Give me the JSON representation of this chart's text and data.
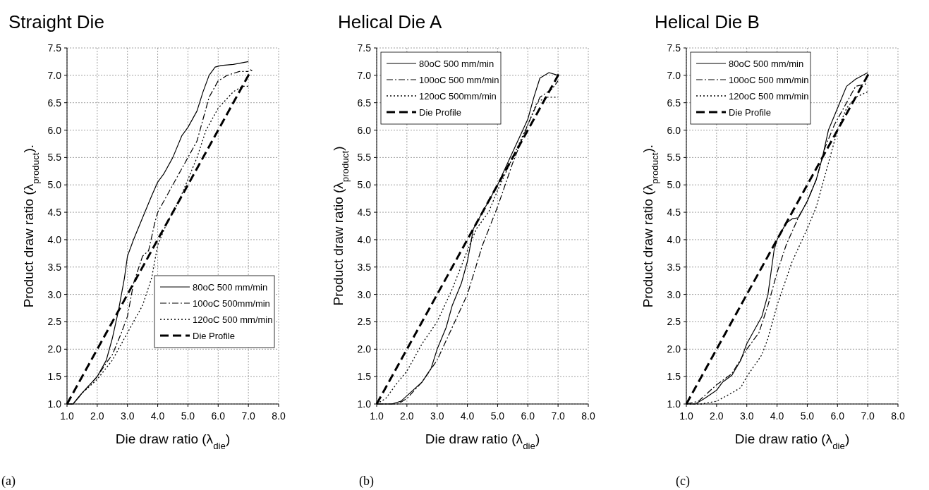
{
  "chart_data": [
    {
      "type": "line",
      "title": "Straight Die",
      "xlabel": "Die draw ratio (λ$_{die}$)",
      "ylabel": "Product draw ratio (λ$_{product}$).",
      "annotations": [
        "(a)"
      ],
      "xlim": [
        1,
        8
      ],
      "ylim": [
        1,
        7.5
      ],
      "xticks": [
        {
          "value": 1,
          "label": "1.0"
        },
        {
          "value": 2,
          "label": "2.0"
        },
        {
          "value": 3,
          "label": "3.0"
        },
        {
          "value": 4,
          "label": "4.0"
        },
        {
          "value": 5,
          "label": "5.0"
        },
        {
          "value": 6,
          "label": "6.0"
        },
        {
          "value": 7,
          "label": "7.0"
        },
        {
          "value": 8,
          "label": "8.0"
        }
      ],
      "yticks": [
        {
          "value": 1,
          "label": "1.0"
        },
        1.5,
        {
          "value": 2,
          "label": "2.0"
        },
        2.5,
        {
          "value": 3,
          "label": "3.0"
        },
        3.5,
        {
          "value": 4,
          "label": "4.0"
        },
        4.5,
        {
          "value": 5,
          "label": "5.0"
        },
        5.5,
        {
          "value": 6,
          "label": "6.0"
        },
        6.5,
        {
          "value": 7,
          "label": "7.0"
        },
        7.5
      ],
      "grid": true,
      "legend": "bottom right",
      "series": [
        {
          "name": "80oC 500 mm/min",
          "color": "#000000",
          "line_style": "solid",
          "x": [
            1,
            1.2,
            1.5,
            2,
            2.3,
            2.5,
            2.7,
            2.9,
            3,
            3.2,
            3.5,
            3.8,
            4,
            4.2,
            4.5,
            4.8,
            5,
            5.3,
            5.5,
            5.7,
            5.9,
            6.1,
            6.5,
            7
          ],
          "values": [
            1,
            1,
            1.2,
            1.5,
            1.8,
            2.2,
            2.7,
            3.3,
            3.7,
            4,
            4.4,
            4.8,
            5.05,
            5.2,
            5.5,
            5.9,
            6.05,
            6.35,
            6.7,
            7,
            7.15,
            7.18,
            7.2,
            7.25
          ]
        },
        {
          "name": "100oC 500mm/min",
          "color": "#000000",
          "line_style": "dashdot",
          "x": [
            1,
            1.2,
            1.5,
            2,
            2.3,
            2.5,
            2.8,
            3,
            3.2,
            3.5,
            3.7,
            3.9,
            4,
            4.3,
            4.6,
            5,
            5.3,
            5.5,
            5.7,
            6,
            6.3,
            6.7,
            7
          ],
          "values": [
            1,
            1,
            1.2,
            1.5,
            1.75,
            1.9,
            2.3,
            2.6,
            3.2,
            3.7,
            3.8,
            4.3,
            4.5,
            4.8,
            5.1,
            5.5,
            5.8,
            6.2,
            6.6,
            6.9,
            7,
            7.07,
            7.07
          ]
        },
        {
          "name": "120oC 500 mm/min",
          "color": "#000000",
          "line_style": "dotted",
          "x": [
            1,
            1.2,
            1.5,
            2,
            2.5,
            3,
            3.3,
            3.5,
            3.8,
            4,
            4.3,
            4.7,
            5,
            5.3,
            5.6,
            6,
            6.5,
            6.8,
            7
          ],
          "values": [
            1,
            1,
            1.2,
            1.45,
            1.8,
            2.3,
            2.6,
            2.8,
            3.3,
            3.9,
            4.3,
            4.7,
            5.1,
            5.5,
            6,
            6.4,
            6.7,
            6.8,
            6.8
          ]
        },
        {
          "name": "Die Profile",
          "color": "#000000",
          "line_style": "dashed",
          "x": [
            1,
            7.1
          ],
          "values": [
            1,
            7.1
          ]
        }
      ]
    },
    {
      "type": "line",
      "title": "Helical Die A",
      "xlabel": "Die draw ratio (λ$_{die}$)",
      "ylabel": "Product draw ratio (λ$_{product}$)",
      "annotations": [
        "(b)"
      ],
      "xlim": [
        1,
        8
      ],
      "ylim": [
        1,
        7.5
      ],
      "xticks": [
        {
          "value": 1,
          "label": "1.0"
        },
        {
          "value": 2,
          "label": "2.0"
        },
        {
          "value": 3,
          "label": "3.0"
        },
        {
          "value": 4,
          "label": "4.0"
        },
        {
          "value": 5,
          "label": "5.0"
        },
        {
          "value": 6,
          "label": "6.0"
        },
        {
          "value": 7,
          "label": "7.0"
        },
        {
          "value": 8,
          "label": "8.0"
        }
      ],
      "yticks": [
        {
          "value": 1,
          "label": "1.0"
        },
        1.5,
        {
          "value": 2,
          "label": "2.0"
        },
        2.5,
        {
          "value": 3,
          "label": "3.0"
        },
        3.5,
        {
          "value": 4,
          "label": "4.0"
        },
        4.5,
        {
          "value": 5,
          "label": "5.0"
        },
        5.5,
        {
          "value": 6,
          "label": "6.0"
        },
        6.5,
        {
          "value": 7,
          "label": "7.0"
        },
        7.5
      ],
      "grid": true,
      "legend": "top left",
      "series": [
        {
          "name": "80oC 500 mm/min",
          "color": "#000000",
          "line_style": "solid",
          "x": [
            1,
            1.5,
            1.8,
            2,
            2.5,
            2.8,
            3,
            3.3,
            3.5,
            3.8,
            4,
            4.2,
            4.5,
            5,
            5.5,
            6,
            6.2,
            6.4,
            6.7,
            7
          ],
          "values": [
            1,
            1,
            1.05,
            1.15,
            1.4,
            1.65,
            2,
            2.4,
            2.8,
            3.2,
            3.6,
            4.2,
            4.5,
            5,
            5.6,
            6.2,
            6.6,
            6.95,
            7.05,
            7
          ]
        },
        {
          "name": "100oC 500 mm/min",
          "color": "#000000",
          "line_style": "dashdot",
          "x": [
            1,
            1.3,
            1.7,
            2,
            2.5,
            3,
            3.5,
            4,
            4.5,
            5,
            5.5,
            6,
            6.4,
            6.8,
            7
          ],
          "values": [
            1,
            1,
            1,
            1.1,
            1.4,
            1.8,
            2.4,
            3,
            3.9,
            4.6,
            5.4,
            6.1,
            6.6,
            6.75,
            6.9
          ]
        },
        {
          "name": "120oC 500mm/min",
          "color": "#000000",
          "line_style": "dotted",
          "x": [
            1,
            1.3,
            1.7,
            2,
            2.5,
            3,
            3.5,
            4,
            4.3,
            4.7,
            5,
            5.5,
            6,
            6.3,
            6.6,
            7
          ],
          "values": [
            1,
            1.1,
            1.4,
            1.6,
            2.1,
            2.5,
            3.1,
            3.8,
            4.2,
            4.5,
            4.9,
            5.5,
            6.1,
            6.5,
            6.6,
            6.6
          ]
        },
        {
          "name": "Die Profile",
          "color": "#000000",
          "line_style": "dashed",
          "x": [
            1,
            7.05
          ],
          "values": [
            1,
            7.05
          ]
        }
      ]
    },
    {
      "type": "line",
      "title": "Helical Die B",
      "xlabel": "Die draw ratio (λ$_{die}$)",
      "ylabel": "Product draw ratio (λ$_{product}$).",
      "annotations": [
        "(c)"
      ],
      "xlim": [
        1,
        8
      ],
      "ylim": [
        1,
        7.5
      ],
      "xticks": [
        {
          "value": 1,
          "label": "1.0"
        },
        {
          "value": 2,
          "label": "2.0"
        },
        {
          "value": 3,
          "label": "3.0"
        },
        {
          "value": 4,
          "label": "4.0"
        },
        {
          "value": 5,
          "label": "5.0"
        },
        {
          "value": 6,
          "label": "6.0"
        },
        {
          "value": 7,
          "label": "7.0"
        },
        {
          "value": 8,
          "label": "8.0"
        }
      ],
      "yticks": [
        {
          "value": 1,
          "label": "1.0"
        },
        1.5,
        {
          "value": 2,
          "label": "2.0"
        },
        2.5,
        {
          "value": 3,
          "label": "3.0"
        },
        3.5,
        {
          "value": 4,
          "label": "4.0"
        },
        4.5,
        {
          "value": 5,
          "label": "5.0"
        },
        5.5,
        {
          "value": 6,
          "label": "6.0"
        },
        6.5,
        {
          "value": 7,
          "label": "7.0"
        },
        7.5
      ],
      "grid": true,
      "legend": "top left",
      "series": [
        {
          "name": "80oC 500 mm/min",
          "color": "#000000",
          "line_style": "solid",
          "x": [
            1,
            1.3,
            1.6,
            2,
            2.2,
            2.5,
            2.8,
            3,
            3.5,
            3.7,
            3.8,
            3.9,
            4,
            4.3,
            4.5,
            4.7,
            5,
            5.3,
            5.5,
            5.7,
            6,
            6.3,
            6.6,
            7
          ],
          "values": [
            1,
            1,
            1.1,
            1.25,
            1.4,
            1.52,
            1.8,
            2.1,
            2.6,
            3,
            3.4,
            3.8,
            4,
            4.3,
            4.38,
            4.4,
            4.7,
            5.1,
            5.5,
            6,
            6.4,
            6.8,
            6.93,
            7.05
          ]
        },
        {
          "name": "100oC 500 mm/min",
          "color": "#000000",
          "line_style": "dashdot",
          "x": [
            1,
            1.4,
            1.7,
            2,
            2.5,
            3,
            3.4,
            3.7,
            4,
            4.3,
            4.7,
            5,
            5.3,
            5.6,
            5.9,
            6.2,
            6.6,
            7
          ],
          "values": [
            1,
            1.05,
            1.2,
            1.35,
            1.55,
            2,
            2.3,
            2.8,
            3.4,
            3.9,
            4.4,
            4.7,
            5.1,
            5.7,
            6.1,
            6.4,
            6.8,
            6.85
          ]
        },
        {
          "name": "120oC 500 mm/min",
          "color": "#000000",
          "line_style": "dotted",
          "x": [
            1,
            1.5,
            2,
            2.5,
            2.8,
            3,
            3.5,
            3.7,
            4,
            4.5,
            5,
            5.3,
            5.6,
            5.8,
            6,
            6.3,
            6.6,
            7
          ],
          "values": [
            1,
            1,
            1.05,
            1.2,
            1.3,
            1.5,
            1.9,
            2.2,
            2.8,
            3.6,
            4.2,
            4.6,
            5.2,
            5.6,
            6,
            6.4,
            6.6,
            6.7
          ]
        },
        {
          "name": "Die Profile",
          "color": "#000000",
          "line_style": "dashed",
          "x": [
            1,
            7.05
          ],
          "values": [
            1,
            7.05
          ]
        }
      ]
    }
  ]
}
